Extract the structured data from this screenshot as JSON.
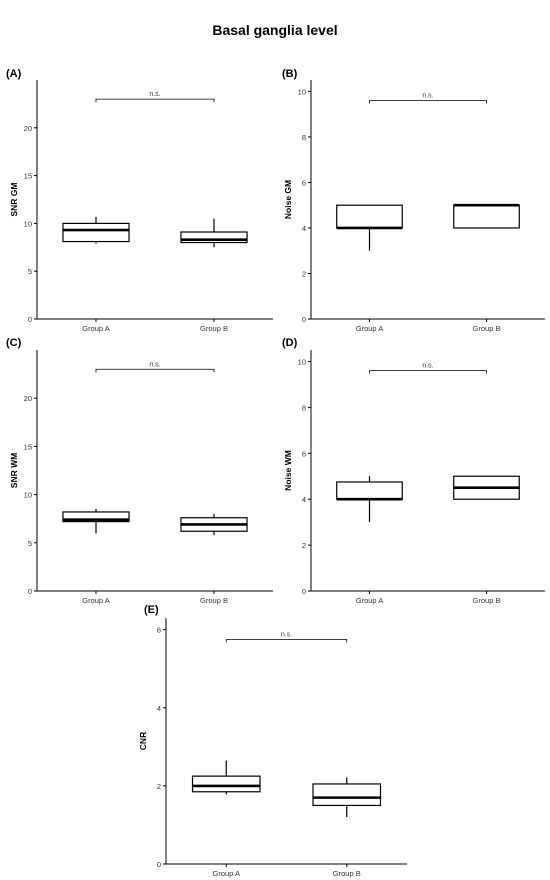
{
  "figure": {
    "title": "Basal ganglia level"
  },
  "chart_data": [
    {
      "type": "box",
      "panel": "(A)",
      "ylabel": "SNR GM",
      "ylim": [
        0,
        25
      ],
      "yticks": [
        0,
        5,
        10,
        15,
        20
      ],
      "categories": [
        "Group A",
        "Group B"
      ],
      "boxes": [
        {
          "min": 7.9,
          "q1": 8.1,
          "median": 9.3,
          "q3": 10.0,
          "max": 10.7
        },
        {
          "min": 7.5,
          "q1": 8.0,
          "median": 8.3,
          "q3": 9.1,
          "max": 10.5
        }
      ],
      "significance": {
        "label": "n.s.",
        "y": 23.0
      }
    },
    {
      "type": "box",
      "panel": "(B)",
      "ylabel": "Noise GM",
      "ylim": [
        0,
        10.5
      ],
      "yticks": [
        0,
        2,
        4,
        6,
        8,
        10
      ],
      "categories": [
        "Group A",
        "Group B"
      ],
      "boxes": [
        {
          "min": 3.0,
          "q1": 4.0,
          "median": 4.0,
          "q3": 5.0,
          "max": 5.0
        },
        {
          "min": 4.0,
          "q1": 4.0,
          "median": 5.0,
          "q3": 5.0,
          "max": 5.0
        }
      ],
      "significance": {
        "label": "n.s.",
        "y": 9.6
      }
    },
    {
      "type": "box",
      "panel": "(C)",
      "ylabel": "SNR WM",
      "ylim": [
        0,
        25
      ],
      "yticks": [
        0,
        5,
        10,
        15,
        20
      ],
      "categories": [
        "Group A",
        "Group B"
      ],
      "boxes": [
        {
          "min": 6.0,
          "q1": 7.2,
          "median": 7.4,
          "q3": 8.2,
          "max": 8.5
        },
        {
          "min": 5.8,
          "q1": 6.2,
          "median": 6.9,
          "q3": 7.6,
          "max": 8.0
        }
      ],
      "significance": {
        "label": "n.s.",
        "y": 23.0
      }
    },
    {
      "type": "box",
      "panel": "(D)",
      "ylabel": "Noise WM",
      "ylim": [
        0,
        10.5
      ],
      "yticks": [
        0,
        2,
        4,
        6,
        8,
        10
      ],
      "categories": [
        "Group A",
        "Group B"
      ],
      "boxes": [
        {
          "min": 3.0,
          "q1": 4.0,
          "median": 4.0,
          "q3": 4.75,
          "max": 5.0
        },
        {
          "min": 4.0,
          "q1": 4.0,
          "median": 4.5,
          "q3": 5.0,
          "max": 5.0
        }
      ],
      "significance": {
        "label": "n.s.",
        "y": 9.6
      }
    },
    {
      "type": "box",
      "panel": "(E)",
      "ylabel": "CNR",
      "ylim": [
        0,
        6.3
      ],
      "yticks": [
        0,
        2,
        4,
        6
      ],
      "categories": [
        "Group A",
        "Group B"
      ],
      "boxes": [
        {
          "min": 1.78,
          "q1": 1.85,
          "median": 2.0,
          "q3": 2.25,
          "max": 2.65
        },
        {
          "min": 1.2,
          "q1": 1.5,
          "median": 1.7,
          "q3": 2.05,
          "max": 2.22
        }
      ],
      "significance": {
        "label": "n.s.",
        "y": 5.75
      }
    }
  ]
}
